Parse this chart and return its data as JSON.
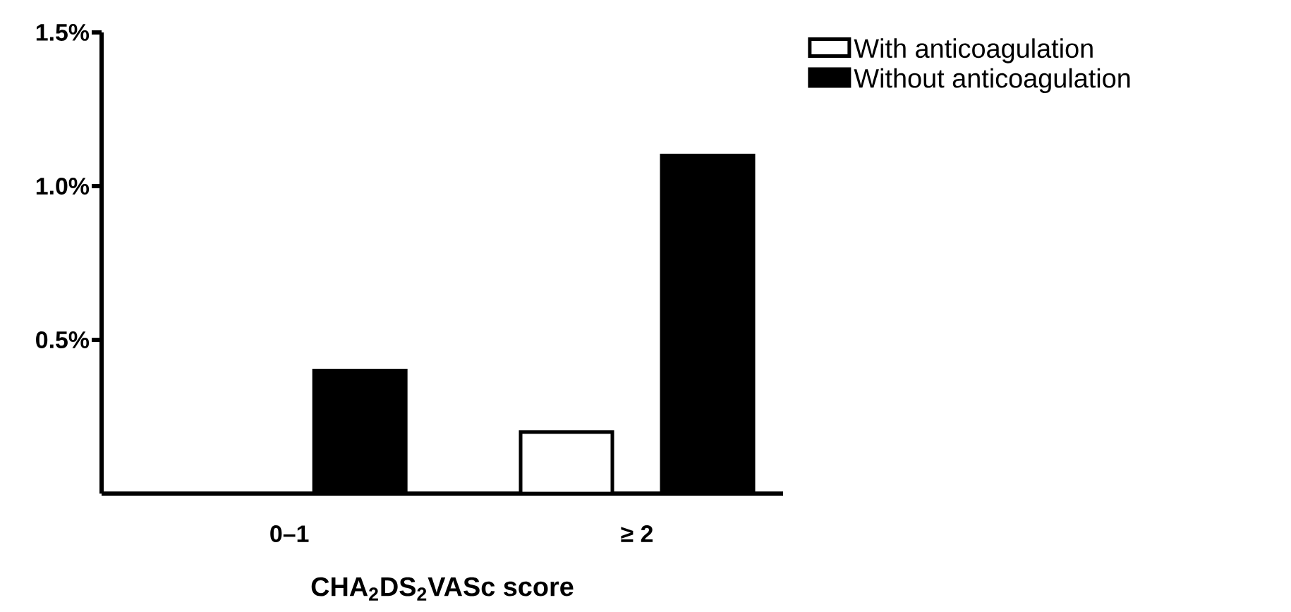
{
  "chart_data": {
    "type": "bar",
    "categories": [
      "0–1",
      "≥ 2"
    ],
    "series": [
      {
        "name": "With anticoagulation",
        "color": "#ffffff",
        "values": [
          null,
          0.2
        ]
      },
      {
        "name": "Without anticoagulation",
        "color": "#000000",
        "values": [
          0.4,
          1.1
        ]
      }
    ],
    "xlabel": "CHA$_{2}$DS$_{2}$VASc score",
    "ylim": [
      0,
      1.5
    ],
    "yticks": [
      {
        "value": 0.5,
        "label": "0.5%"
      },
      {
        "value": 1.0,
        "label": "1.0%"
      },
      {
        "value": 1.5,
        "label": "1.5%"
      }
    ],
    "grid": false,
    "legend": "top right"
  }
}
